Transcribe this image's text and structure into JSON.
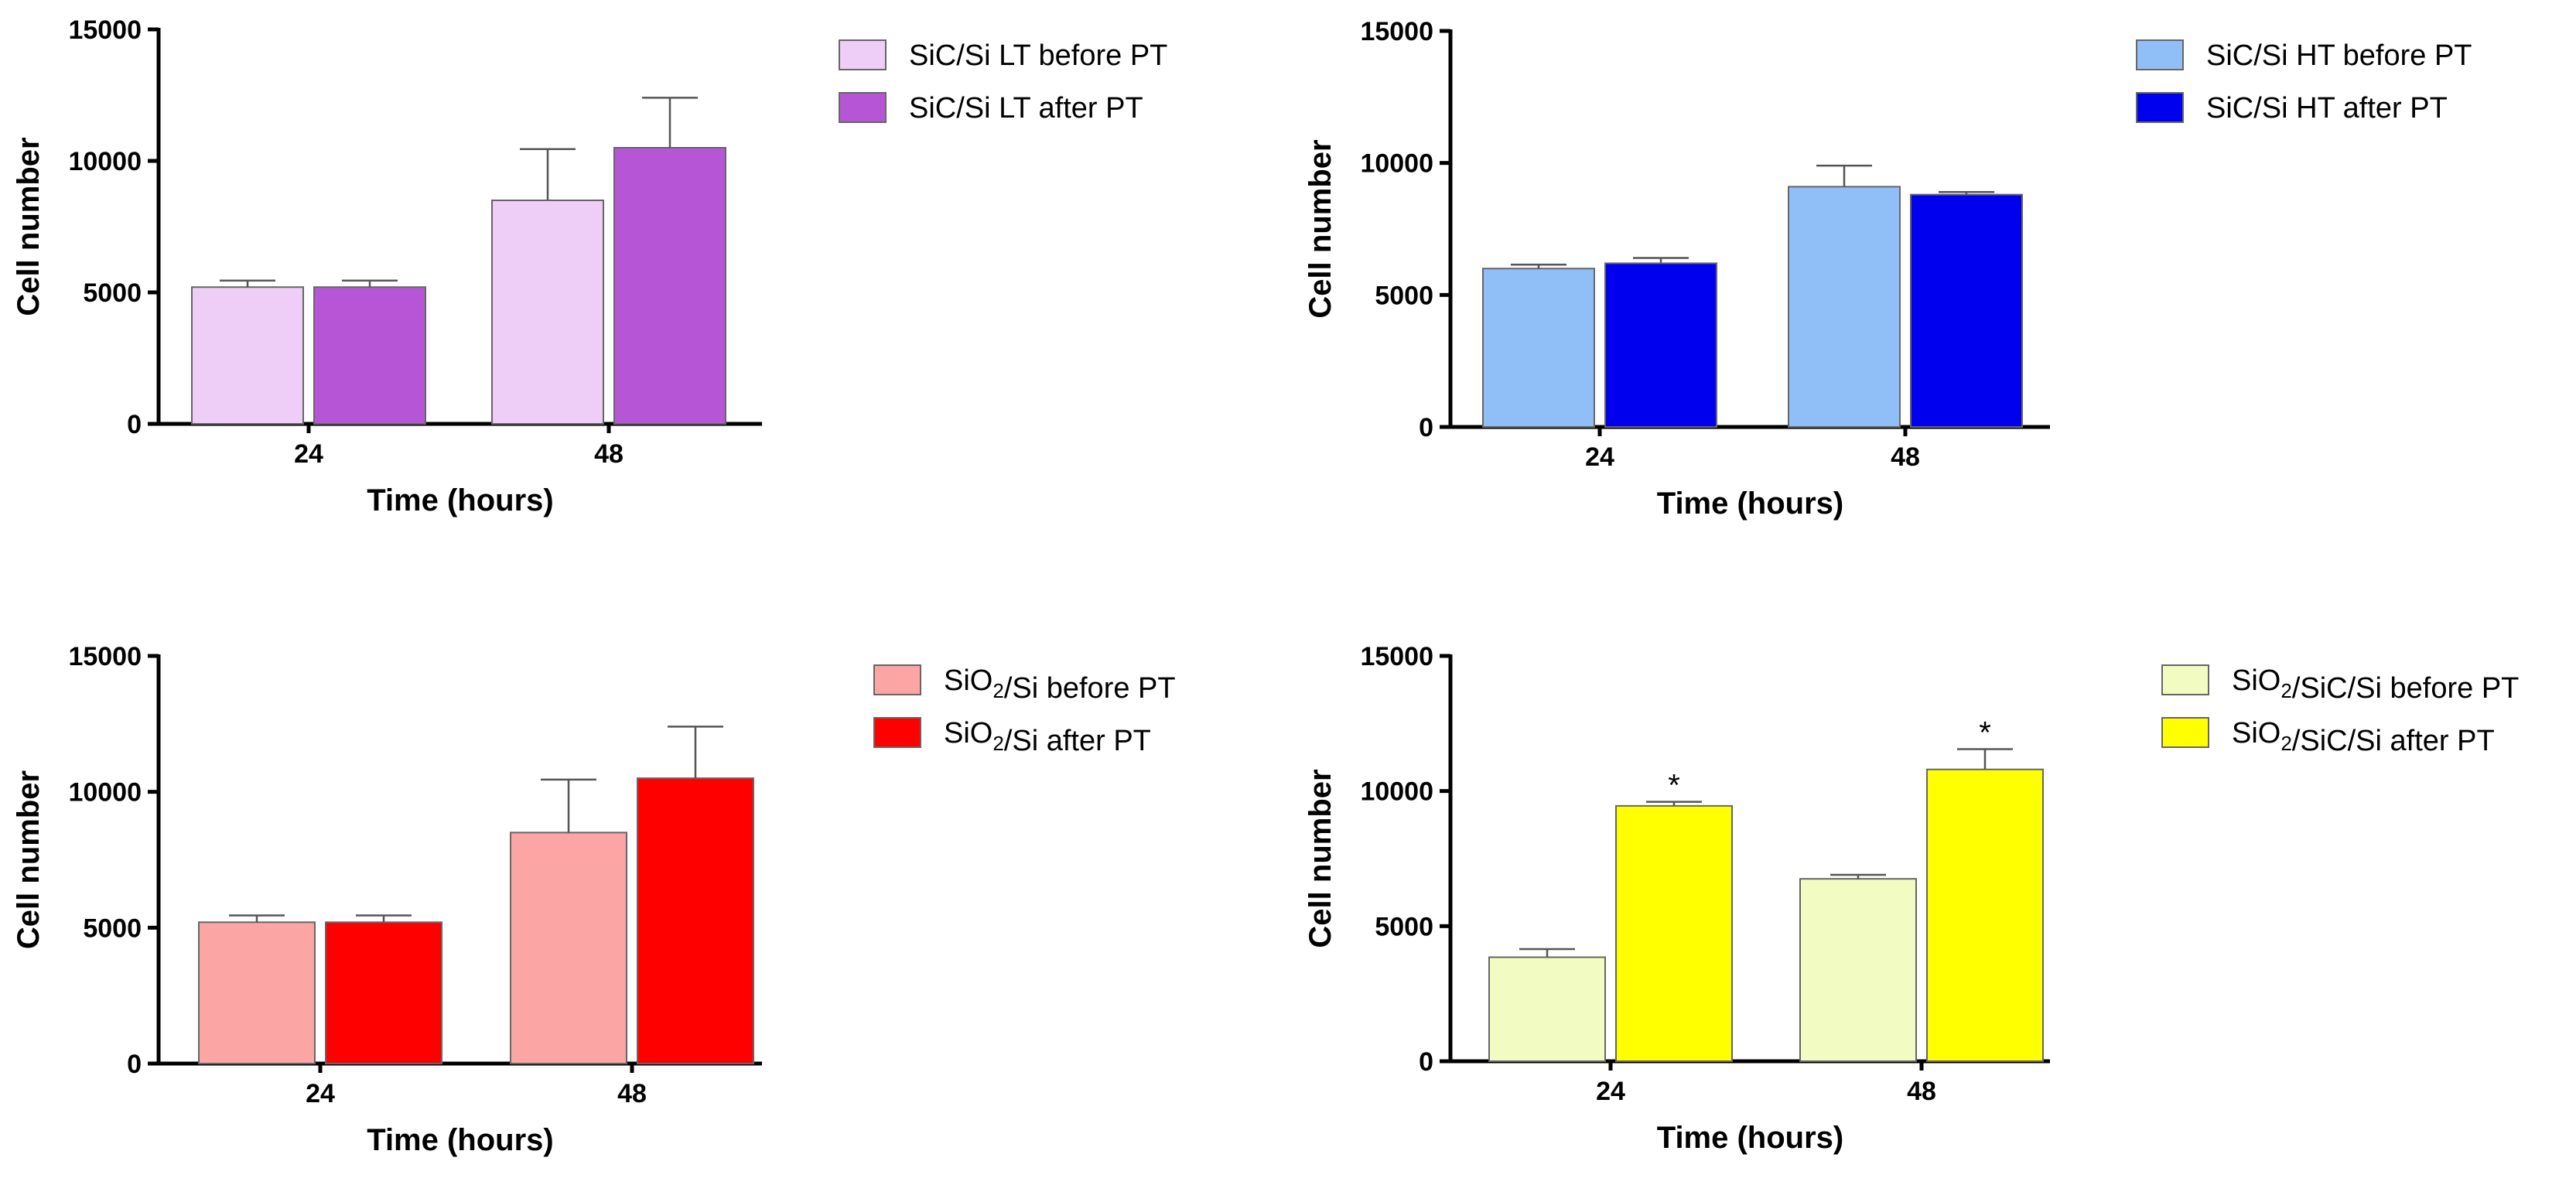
{
  "chart_data": [
    {
      "type": "bar",
      "title": "",
      "xlabel": "Time (hours)",
      "ylabel": "Cell number",
      "categories": [
        "24",
        "48"
      ],
      "ylim": [
        0,
        15000
      ],
      "yticks": [
        0,
        5000,
        10000,
        15000
      ],
      "legend_position": "top-right",
      "series": [
        {
          "name": "SiC/Si LT before PT",
          "name_parts": [
            {
              "t": "SiC/Si LT before PT",
              "sub": false
            }
          ],
          "color": "#eecdf7",
          "values": [
            5200,
            8500
          ],
          "errors": [
            250,
            1950
          ],
          "significance": [
            "",
            ""
          ]
        },
        {
          "name": "SiC/Si LT after PT",
          "name_parts": [
            {
              "t": "SiC/Si LT after PT",
              "sub": false
            }
          ],
          "color": "#b656d6",
          "values": [
            5200,
            10500
          ],
          "errors": [
            250,
            1900
          ],
          "significance": [
            "",
            ""
          ]
        }
      ]
    },
    {
      "type": "bar",
      "title": "",
      "xlabel": "Time (hours)",
      "ylabel": "Cell number",
      "categories": [
        "24",
        "48"
      ],
      "ylim": [
        0,
        15000
      ],
      "yticks": [
        0,
        5000,
        10000,
        15000
      ],
      "legend_position": "top-right",
      "series": [
        {
          "name": "SiC/Si HT before PT",
          "name_parts": [
            {
              "t": "SiC/Si HT before PT",
              "sub": false
            }
          ],
          "color": "#90bff8",
          "values": [
            6000,
            9100
          ],
          "errors": [
            150,
            800
          ],
          "significance": [
            "",
            ""
          ]
        },
        {
          "name": "SiC/Si HT after PT",
          "name_parts": [
            {
              "t": "SiC/Si HT after PT",
              "sub": false
            }
          ],
          "color": "#0000ee",
          "values": [
            6200,
            8800
          ],
          "errors": [
            200,
            100
          ],
          "significance": [
            "",
            ""
          ]
        }
      ]
    },
    {
      "type": "bar",
      "title": "",
      "xlabel": "Time (hours)",
      "ylabel": "Cell number",
      "categories": [
        "24",
        "48"
      ],
      "ylim": [
        0,
        15000
      ],
      "yticks": [
        0,
        5000,
        10000,
        15000
      ],
      "legend_position": "top-right",
      "series": [
        {
          "name": "SiO2/Si before PT",
          "name_parts": [
            {
              "t": "SiO",
              "sub": false
            },
            {
              "t": "2",
              "sub": true
            },
            {
              "t": "/Si before PT",
              "sub": false
            }
          ],
          "color": "#fba5a5",
          "values": [
            5200,
            8500
          ],
          "errors": [
            250,
            1950
          ],
          "significance": [
            "",
            ""
          ]
        },
        {
          "name": "SiO2/Si after PT",
          "name_parts": [
            {
              "t": "SiO",
              "sub": false
            },
            {
              "t": "2",
              "sub": true
            },
            {
              "t": "/Si after PT",
              "sub": false
            }
          ],
          "color": "#ff0000",
          "values": [
            5200,
            10500
          ],
          "errors": [
            250,
            1900
          ],
          "significance": [
            "",
            ""
          ]
        }
      ]
    },
    {
      "type": "bar",
      "title": "",
      "xlabel": "Time (hours)",
      "ylabel": "Cell number",
      "categories": [
        "24",
        "48"
      ],
      "ylim": [
        0,
        15000
      ],
      "yticks": [
        0,
        5000,
        10000,
        15000
      ],
      "legend_position": "top-right",
      "series": [
        {
          "name": "SiO2/SiC/Si before PT",
          "name_parts": [
            {
              "t": "SiO",
              "sub": false
            },
            {
              "t": "2",
              "sub": true
            },
            {
              "t": "/SiC/Si before PT",
              "sub": false
            }
          ],
          "color": "#f2fcc2",
          "values": [
            3850,
            6750
          ],
          "errors": [
            300,
            150
          ],
          "significance": [
            "",
            ""
          ]
        },
        {
          "name": "SiO2/SiC/Si after PT",
          "name_parts": [
            {
              "t": "SiO",
              "sub": false
            },
            {
              "t": "2",
              "sub": true
            },
            {
              "t": "/SiC/Si after PT",
              "sub": false
            }
          ],
          "color": "#ffff00",
          "values": [
            9450,
            10800
          ],
          "errors": [
            150,
            750
          ],
          "significance": [
            "*",
            "*"
          ]
        }
      ]
    }
  ]
}
